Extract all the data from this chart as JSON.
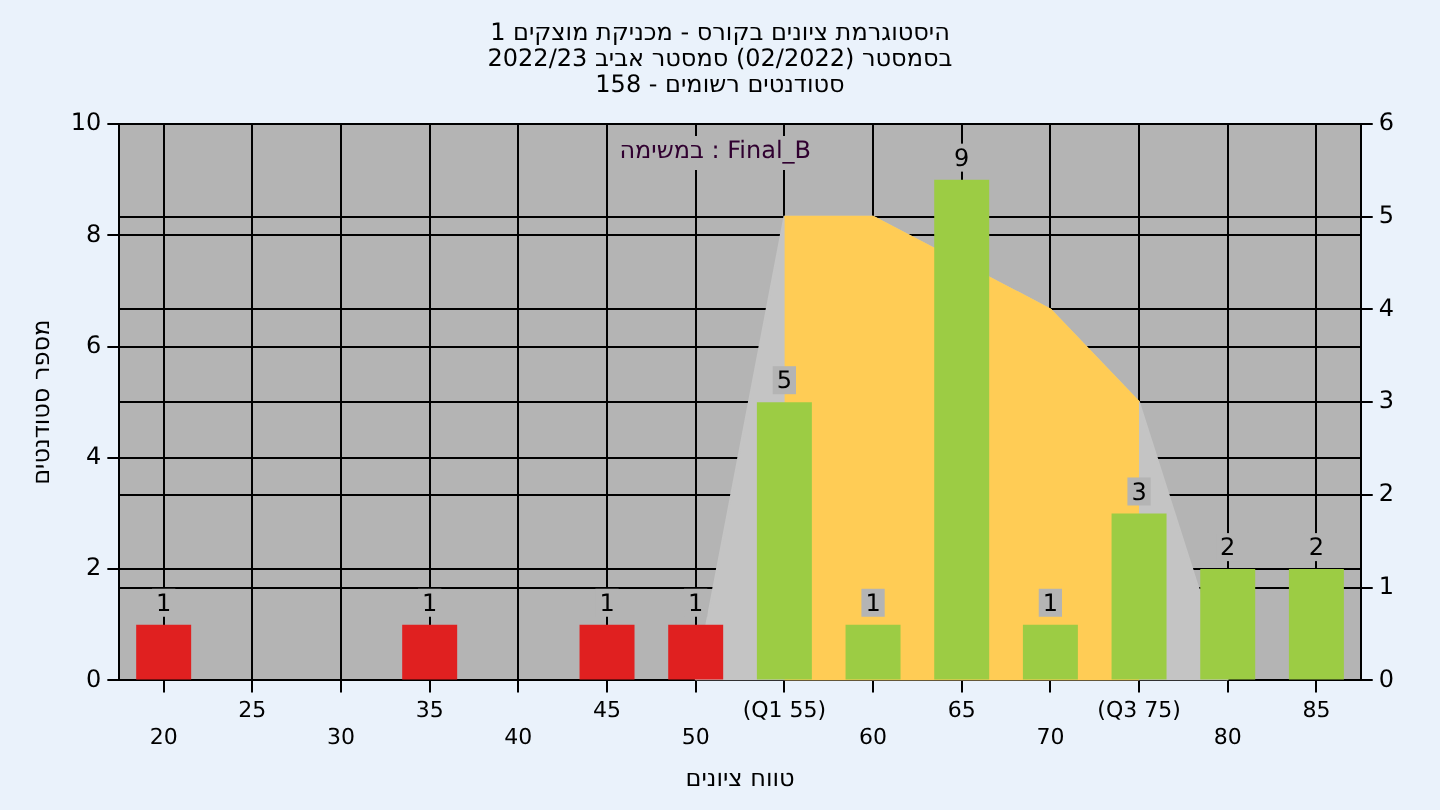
{
  "chart_data": {
    "type": "bar",
    "title": "היסטוגרמת ציונים בקורס - מכניקת מוצקים 1",
    "subtitle": "בסמסטר  (02/2022)  סמסטר אביב 2022/23\nסטודנטים רשומים - 158",
    "xlabel": "טווח ציונים",
    "ylabel": "מספר סטודנטים",
    "categories": [
      "20",
      "25",
      "30",
      "35",
      "40",
      "45",
      "50",
      "(Q1 55)",
      "60",
      "65",
      "70",
      "(Q3 75)",
      "80",
      "85"
    ],
    "series": [
      {
        "colors": [
          "#e02020",
          "#e02020",
          "#e02020",
          "#e02020",
          "#e02020",
          "#e02020",
          "#e02020",
          "#9ccc44",
          "#9ccc44",
          "#9ccc44",
          "#9ccc44",
          "#9ccc44",
          "#9ccc44",
          "#9ccc44"
        ],
        "values": [
          1,
          null,
          null,
          1,
          null,
          1,
          1,
          5,
          1,
          9,
          1,
          3,
          2,
          2
        ],
        "value_labels": [
          "1",
          null,
          null,
          "1",
          null,
          "1",
          "1",
          "5",
          "1",
          "9",
          "1",
          "3",
          "2",
          "2"
        ]
      },
      {
        "type": "area",
        "axis": "y2",
        "color": "#c4c4c4",
        "values": [
          null,
          null,
          null,
          null,
          null,
          null,
          0,
          5,
          5,
          null,
          4,
          3,
          0,
          null
        ]
      },
      {
        "type": "area",
        "axis": "y2",
        "color": "#ffcc55",
        "values": [
          null,
          null,
          null,
          null,
          null,
          null,
          null,
          5,
          5,
          null,
          4,
          3,
          null,
          null
        ]
      }
    ],
    "ylim": [
      0,
      10
    ],
    "yticks": [
      0,
      2,
      4,
      6,
      8,
      10
    ],
    "y2lim": [
      0,
      6
    ],
    "y2ticks": [
      0,
      1,
      2,
      3,
      4,
      5,
      6
    ],
    "grid": true,
    "marker": "none",
    "legend": false,
    "annotations": [
      "במשימה : Final_B"
    ]
  }
}
